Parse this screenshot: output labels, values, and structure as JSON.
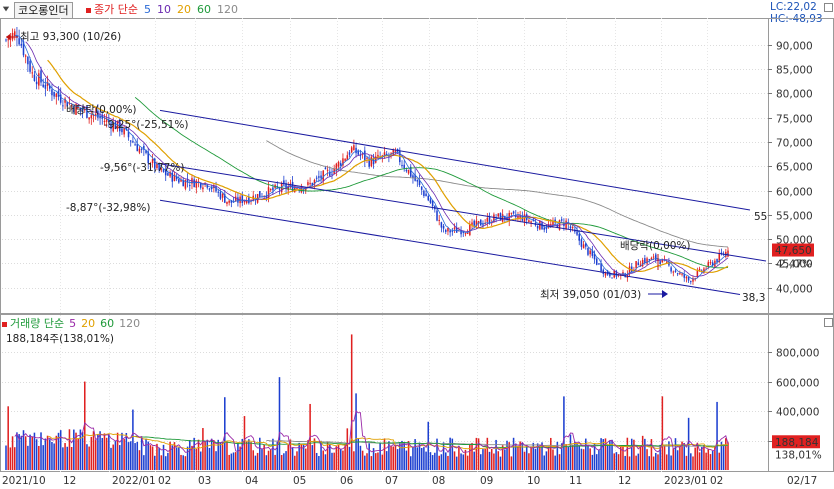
{
  "header": {
    "ticker": "코오롱인더",
    "ma_label": "종가 단순",
    "ma_periods": [
      "5",
      "10",
      "20",
      "60",
      "120"
    ],
    "lc": "LC:22,02",
    "hc": "HC:-48,93"
  },
  "volume_header": {
    "label": "거래량 단순",
    "ma_periods": [
      "5",
      "20",
      "60",
      "120"
    ],
    "current": "188,184주(138,01%)"
  },
  "colors": {
    "up": "#e02020",
    "down": "#1c3fd0",
    "ma5": "#2a6ad6",
    "ma10": "#6a2ab0",
    "ma20": "#e0a000",
    "ma60": "#1f9a3a",
    "ma120": "#8a8a8a",
    "channel": "#1a1aa0"
  },
  "chart_data": [
    {
      "type": "candlestick",
      "y_ticks": [
        40000,
        45000,
        50000,
        55000,
        60000,
        65000,
        70000,
        75000,
        80000,
        85000,
        90000
      ],
      "y_tick_labels": [
        "40,000",
        "45,000",
        "50,000",
        "55,000",
        "60,000",
        "65,000",
        "70,000",
        "75,000",
        "80,000",
        "85,000",
        "90,000"
      ],
      "ylim": [
        35000,
        95500
      ],
      "x_labels": [
        "2021/10",
        "12",
        "2022/01",
        "02",
        "03",
        "04",
        "05",
        "06",
        "07",
        "08",
        "09",
        "10",
        "11",
        "12",
        "2023/01",
        "02",
        "02/17"
      ],
      "last_price": "47,650",
      "last_change": "-2,47%",
      "annotations": {
        "high": "최고 93,300 (10/26)",
        "low": "최저 39,050 (01/03)",
        "ex_div_1": "배당락(0,00%)",
        "ex_div_2": "배당락(0,00%)",
        "ch1": "-9,25°(-25,51%)",
        "ch2": "-9,56°(-31,77%)",
        "ch3": "-8,87°(-32,98%)",
        "ch1_end": "55",
        "ch3_end": "38,3"
      },
      "key_points": [
        {
          "date": "2021/10/26",
          "high": 93300
        },
        {
          "date": "2022/01",
          "close": 68000
        },
        {
          "date": "2022/02",
          "close": 62000
        },
        {
          "date": "2022/03",
          "close": 57000
        },
        {
          "date": "2022/05",
          "close": 68000
        },
        {
          "date": "2022/06",
          "close": 67000
        },
        {
          "date": "2022/07",
          "close": 50000
        },
        {
          "date": "2022/08",
          "close": 54000
        },
        {
          "date": "2022/09",
          "close": 52000
        },
        {
          "date": "2022/10",
          "close": 42000
        },
        {
          "date": "2022/12",
          "close": 46000
        },
        {
          "date": "2023/01/03",
          "low": 39050
        },
        {
          "date": "2023/02/17",
          "close": 47650
        }
      ]
    },
    {
      "type": "bar",
      "y_ticks": [
        200000,
        400000,
        600000,
        800000
      ],
      "y_tick_labels": [
        "200,000",
        "400,000",
        "600,000",
        "800,000"
      ],
      "ylim": [
        0,
        950000
      ],
      "last_volume": "188,184",
      "last_ratio": "138,01%"
    }
  ]
}
